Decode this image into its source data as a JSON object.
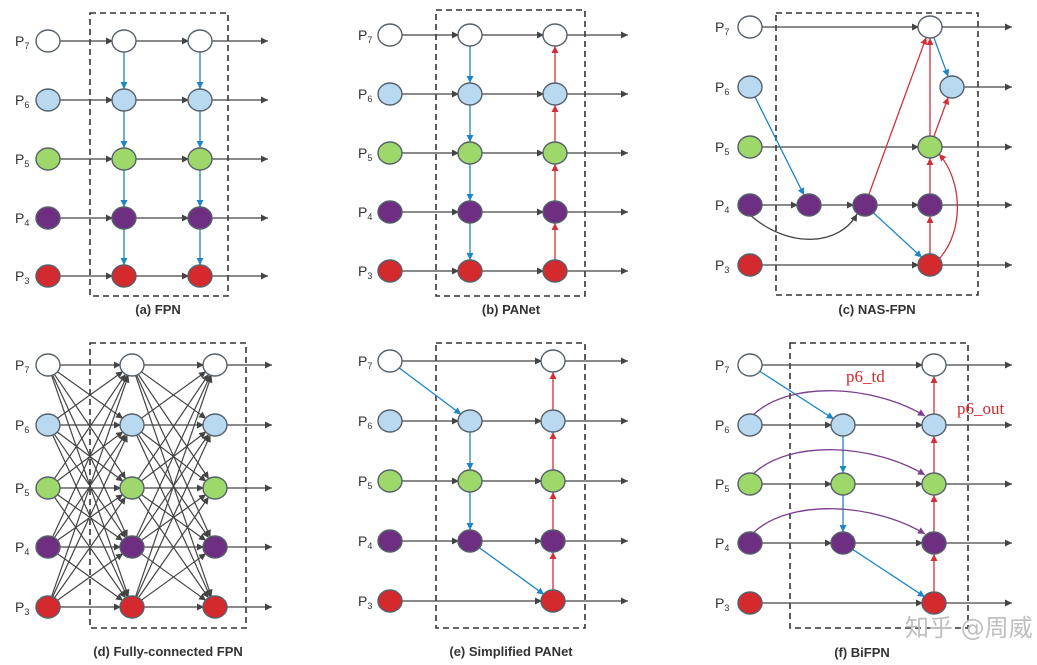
{
  "levels": [
    {
      "label": "P",
      "sub": "7",
      "color": "#ffffff"
    },
    {
      "label": "P",
      "sub": "6",
      "color": "#b9d9f0"
    },
    {
      "label": "P",
      "sub": "5",
      "color": "#9ed86a"
    },
    {
      "label": "P",
      "sub": "4",
      "color": "#6e2f82"
    },
    {
      "label": "P",
      "sub": "3",
      "color": "#d42a2d"
    }
  ],
  "edge_colors": {
    "lateral": "#444444",
    "top_down": "#1e86c6",
    "bottom_up": "#d0303a",
    "skip": "#7b3e8e"
  },
  "panels": [
    {
      "title": "(a) FPN"
    },
    {
      "title": "(b) PANet"
    },
    {
      "title": "(c) NAS-FPN"
    },
    {
      "title": "(d) Fully-connected FPN"
    },
    {
      "title": "(e) Simplified PANet"
    },
    {
      "title": "(f) BiFPN"
    }
  ],
  "annotations": {
    "p6_td": "p6_td",
    "p6_out": "p6_out"
  },
  "watermark": "知乎 @周威"
}
